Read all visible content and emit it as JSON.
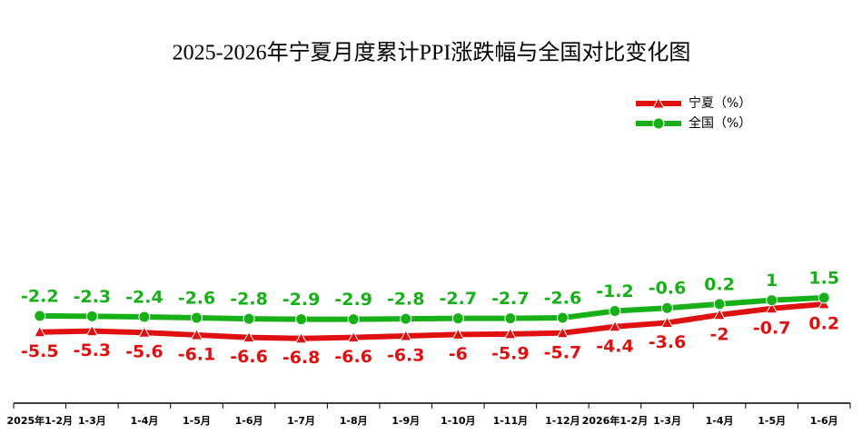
{
  "chart_data": {
    "type": "line",
    "title": "2025-2026年宁夏月度累计PPI涨跌幅与全国对比变化图",
    "categories": [
      "2025年1-2月",
      "1-3月",
      "1-4月",
      "1-5月",
      "1-6月",
      "1-7月",
      "1-8月",
      "1-9月",
      "1-10月",
      "1-11月",
      "1-12月",
      "2026年1-2月",
      "1-3月",
      "1-4月",
      "1-5月",
      "1-6月"
    ],
    "series": [
      {
        "name": "宁夏（%）",
        "color": "#e01010",
        "marker": "triangle",
        "values": [
          -5.5,
          -5.3,
          -5.6,
          -6.1,
          -6.6,
          -6.8,
          -6.6,
          -6.3,
          -6.0,
          -5.9,
          -5.7,
          -4.4,
          -3.6,
          -2.0,
          -0.7,
          0.2
        ]
      },
      {
        "name": "全国（%）",
        "color": "#18b018",
        "marker": "circle",
        "values": [
          -2.2,
          -2.3,
          -2.4,
          -2.6,
          -2.8,
          -2.9,
          -2.9,
          -2.8,
          -2.7,
          -2.7,
          -2.6,
          -1.2,
          -0.6,
          0.2,
          1.0,
          1.5
        ]
      }
    ],
    "ylim": [
      -20,
      44
    ],
    "legend": "top-right"
  }
}
